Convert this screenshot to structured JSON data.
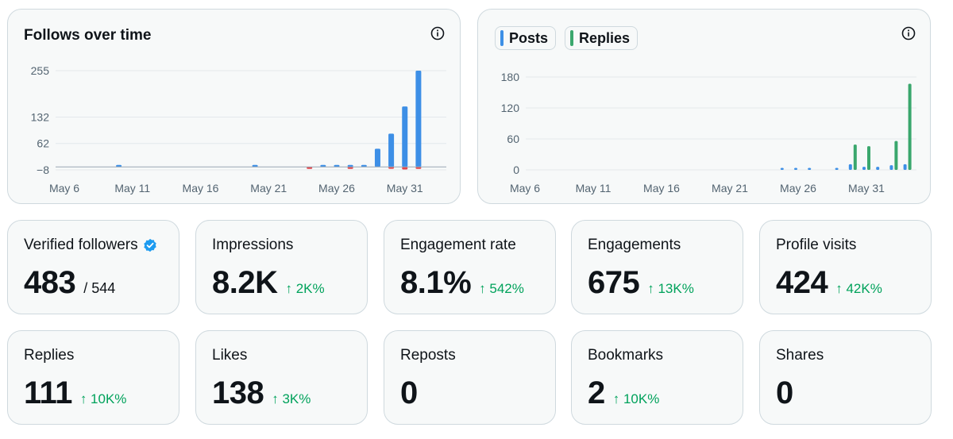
{
  "follows_chart": {
    "title": "Follows over time",
    "icon": "info-icon",
    "chart_data": {
      "type": "bar",
      "x_ticks": [
        "May 6",
        "May 11",
        "May 16",
        "May 21",
        "May 26",
        "May 31"
      ],
      "y_ticks": [
        "255",
        "132",
        "62",
        "−8"
      ],
      "y_tick_values": [
        255,
        132,
        62,
        -8
      ],
      "ylim": [
        -8,
        255
      ],
      "series": [
        {
          "color": "#3d8fe6",
          "points": [
            {
              "x": "May 10",
              "y": 2
            },
            {
              "x": "May 20",
              "y": 1
            },
            {
              "x": "May 25",
              "y": 2
            },
            {
              "x": "May 26",
              "y": 2
            },
            {
              "x": "May 27",
              "y": 1
            },
            {
              "x": "May 28",
              "y": 2
            },
            {
              "x": "May 29",
              "y": 48
            },
            {
              "x": "May 30",
              "y": 88
            },
            {
              "x": "May 31",
              "y": 160
            },
            {
              "x": "Jun 1",
              "y": 255
            }
          ]
        },
        {
          "color": "#e0474c",
          "points": [
            {
              "x": "May 24",
              "y": -2
            },
            {
              "x": "May 27",
              "y": -2
            },
            {
              "x": "May 30",
              "y": -5
            },
            {
              "x": "May 31",
              "y": -7
            },
            {
              "x": "Jun 1",
              "y": -1
            }
          ]
        }
      ]
    }
  },
  "posts_chart": {
    "icon": "info-icon",
    "legend": [
      {
        "label": "Posts",
        "color": "#3d8fe6"
      },
      {
        "label": "Replies",
        "color": "#3aa76d"
      }
    ],
    "chart_data": {
      "type": "bar",
      "x_ticks": [
        "May 6",
        "May 11",
        "May 16",
        "May 21",
        "May 26",
        "May 31"
      ],
      "y_ticks": [
        "180",
        "120",
        "60",
        "0"
      ],
      "y_tick_values": [
        180,
        120,
        60,
        0
      ],
      "ylim": [
        0,
        180
      ],
      "series": [
        {
          "name": "Posts",
          "color": "#3d8fe6",
          "points": [
            {
              "x": "May 25",
              "y": 3
            },
            {
              "x": "May 26",
              "y": 2
            },
            {
              "x": "May 27",
              "y": 1
            },
            {
              "x": "May 29",
              "y": 1
            },
            {
              "x": "May 30",
              "y": 11
            },
            {
              "x": "May 31",
              "y": 6
            },
            {
              "x": "Jun 1",
              "y": 6
            },
            {
              "x": "Jun 2",
              "y": 9
            },
            {
              "x": "Jun 3",
              "y": 11
            }
          ]
        },
        {
          "name": "Replies",
          "color": "#3aa76d",
          "points": [
            {
              "x": "May 30",
              "y": 49
            },
            {
              "x": "May 31",
              "y": 46
            },
            {
              "x": "Jun 2",
              "y": 56
            },
            {
              "x": "Jun 3",
              "y": 167
            }
          ]
        }
      ]
    }
  },
  "stats": [
    {
      "label": "Verified followers",
      "value": "483",
      "total": "/ 544",
      "change": "",
      "icon": "verified-badge-icon"
    },
    {
      "label": "Impressions",
      "value": "8.2K",
      "change": "↑ 2K%"
    },
    {
      "label": "Engagement rate",
      "value": "8.1%",
      "change": "↑ 542%"
    },
    {
      "label": "Engagements",
      "value": "675",
      "change": "↑ 13K%"
    },
    {
      "label": "Profile visits",
      "value": "424",
      "change": "↑ 42K%"
    },
    {
      "label": "Replies",
      "value": "111",
      "change": "↑ 10K%"
    },
    {
      "label": "Likes",
      "value": "138",
      "change": "↑ 3K%"
    },
    {
      "label": "Reposts",
      "value": "0",
      "change": ""
    },
    {
      "label": "Bookmarks",
      "value": "2",
      "change": "↑ 10K%"
    },
    {
      "label": "Shares",
      "value": "0",
      "change": ""
    }
  ],
  "colors": {
    "card_bg": "#f7f9f9",
    "card_border": "#cfd9de",
    "positive_change": "#00a25b",
    "verified_blue": "#1d9bf0"
  }
}
